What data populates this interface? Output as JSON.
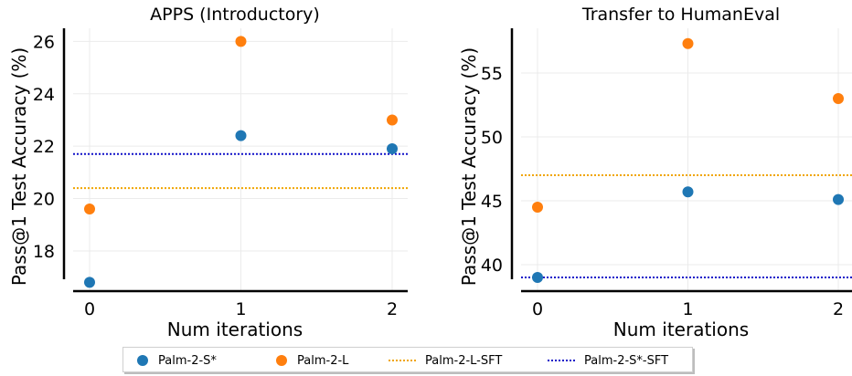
{
  "chart_data": [
    {
      "type": "scatter",
      "title": "APPS (Introductory)",
      "xlabel": "Num iterations",
      "ylabel": "Pass@1 Test Accuracy (%)",
      "x": [
        0,
        1,
        2
      ],
      "xticks": [
        0,
        1,
        2
      ],
      "ylim": [
        16.5,
        26.5
      ],
      "yticks": [
        18,
        20,
        22,
        24,
        26
      ],
      "grid": true,
      "series": [
        {
          "name": "Palm-2-S*",
          "values": [
            16.8,
            22.4,
            21.9
          ]
        },
        {
          "name": "Palm-2-L",
          "values": [
            19.6,
            26.0,
            23.0
          ]
        }
      ],
      "reference_lines": [
        {
          "name": "Palm-2-L-SFT",
          "value": 20.4
        },
        {
          "name": "Palm-2-S*-SFT",
          "value": 21.7
        }
      ]
    },
    {
      "type": "scatter",
      "title": "Transfer to HumanEval",
      "xlabel": "Num iterations",
      "ylabel": "Pass@1 Test Accuracy (%)",
      "x": [
        0,
        1,
        2
      ],
      "xticks": [
        0,
        1,
        2
      ],
      "ylim": [
        38.0,
        58.5
      ],
      "yticks": [
        40,
        45,
        50,
        55
      ],
      "grid": true,
      "series": [
        {
          "name": "Palm-2-S*",
          "values": [
            39.0,
            45.7,
            45.1
          ]
        },
        {
          "name": "Palm-2-L",
          "values": [
            44.5,
            57.3,
            53.0
          ]
        }
      ],
      "reference_lines": [
        {
          "name": "Palm-2-L-SFT",
          "value": 47.0
        },
        {
          "name": "Palm-2-S*-SFT",
          "value": 39.0
        }
      ]
    }
  ],
  "legend": {
    "placement": "bottom-center",
    "entries": [
      {
        "label": "Palm-2-S*",
        "kind": "marker",
        "color": "#1f77b4"
      },
      {
        "label": "Palm-2-L",
        "kind": "marker",
        "color": "#ff7f0e"
      },
      {
        "label": "Palm-2-L-SFT",
        "kind": "dotted-line",
        "color": "#f0a500"
      },
      {
        "label": "Palm-2-S*-SFT",
        "kind": "dotted-line",
        "color": "#1010c8"
      }
    ]
  },
  "colors": {
    "Palm-2-S*": "#1f77b4",
    "Palm-2-L": "#ff7f0e",
    "Palm-2-L-SFT": "#f0a500",
    "Palm-2-S*-SFT": "#1010c8"
  }
}
